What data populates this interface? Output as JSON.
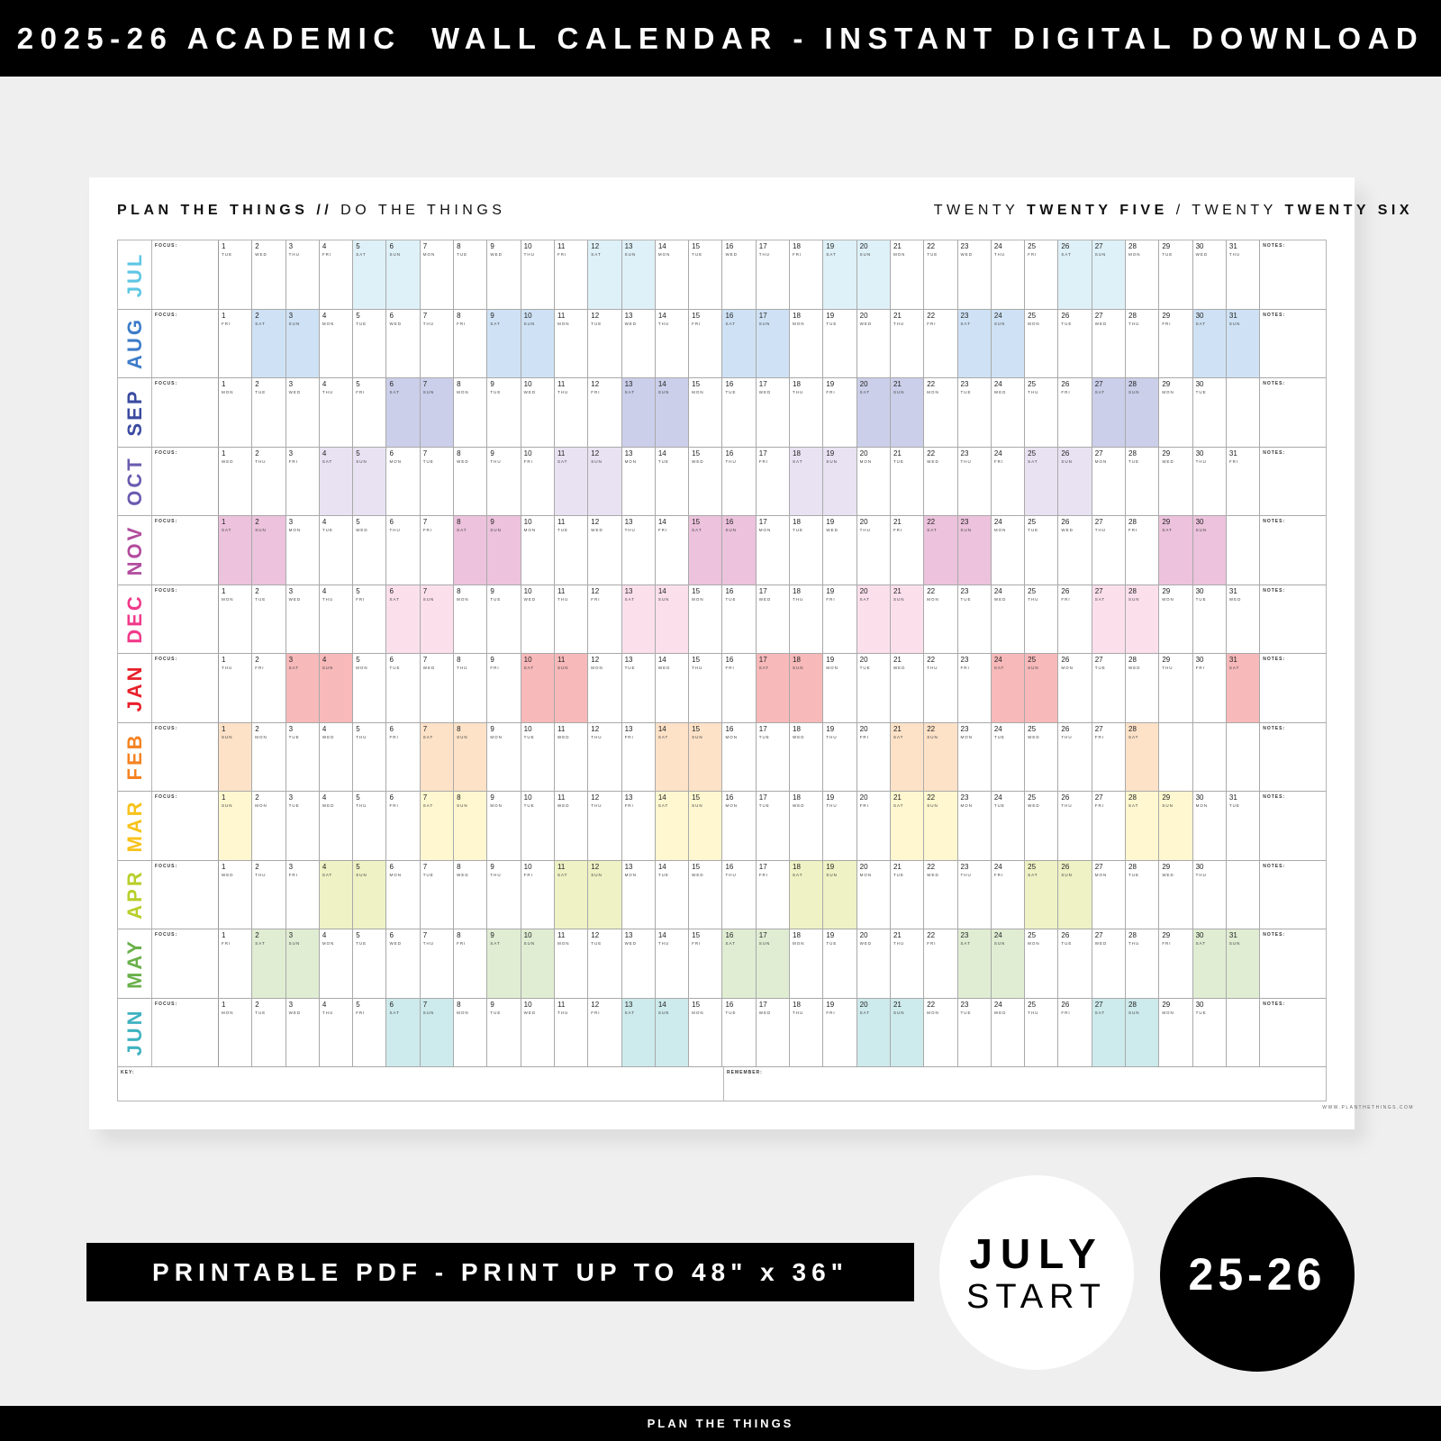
{
  "header": {
    "title": "2025-26 ACADEMIC  WALL CALENDAR - INSTANT DIGITAL DOWNLOAD"
  },
  "calendar": {
    "brand_bold": "PLAN THE THINGS //",
    "brand_light": " DO THE THINGS",
    "year1_light": "TWENTY ",
    "year1_bold": "TWENTY FIVE",
    "sep": " / ",
    "year2_light": "TWENTY ",
    "year2_bold": "TWENTY SIX",
    "focus_label": "FOCUS:",
    "notes_label": "NOTES:",
    "key_label": "KEY:",
    "remember_label": "REMEMBER:",
    "url": "WWW.PLANTHETHINGS.COM",
    "weekdays": [
      "MON",
      "TUE",
      "WED",
      "THU",
      "FRI",
      "SAT",
      "SUN"
    ],
    "months": [
      {
        "name": "JUL",
        "color": "#5ec6e4",
        "weekend": "#dff1f8",
        "start": "TUE",
        "days": 31
      },
      {
        "name": "AUG",
        "color": "#3d7cc9",
        "weekend": "#cfe2f5",
        "start": "FRI",
        "days": 31
      },
      {
        "name": "SEP",
        "color": "#3a4aa0",
        "weekend": "#cccfea",
        "start": "MON",
        "days": 30
      },
      {
        "name": "OCT",
        "color": "#6b5bb0",
        "weekend": "#e8e2f2",
        "start": "WED",
        "days": 31
      },
      {
        "name": "NOV",
        "color": "#b24c9e",
        "weekend": "#ecc2dc",
        "start": "SAT",
        "days": 30
      },
      {
        "name": "DEC",
        "color": "#f03a8a",
        "weekend": "#fbe0ec",
        "start": "MON",
        "days": 31
      },
      {
        "name": "JAN",
        "color": "#e8202a",
        "weekend": "#f7b9ba",
        "start": "THU",
        "days": 31
      },
      {
        "name": "FEB",
        "color": "#f58220",
        "weekend": "#fde2c8",
        "start": "SUN",
        "days": 28
      },
      {
        "name": "MAR",
        "color": "#f7c21a",
        "weekend": "#fef7cf",
        "start": "SUN",
        "days": 31
      },
      {
        "name": "APR",
        "color": "#b8cf2a",
        "weekend": "#eef2c4",
        "start": "WED",
        "days": 30
      },
      {
        "name": "MAY",
        "color": "#6ab04a",
        "weekend": "#e0edd3",
        "start": "FRI",
        "days": 31
      },
      {
        "name": "JUN",
        "color": "#3eb2c0",
        "weekend": "#cdeaec",
        "start": "MON",
        "days": 30
      }
    ]
  },
  "promo": {
    "print_label": "PRINTABLE PDF - PRINT UP TO 48\" x 36\"",
    "start_line1": "JULY",
    "start_line2": "START",
    "years": "25-26"
  },
  "footer": {
    "brand": "PLAN THE THINGS"
  }
}
